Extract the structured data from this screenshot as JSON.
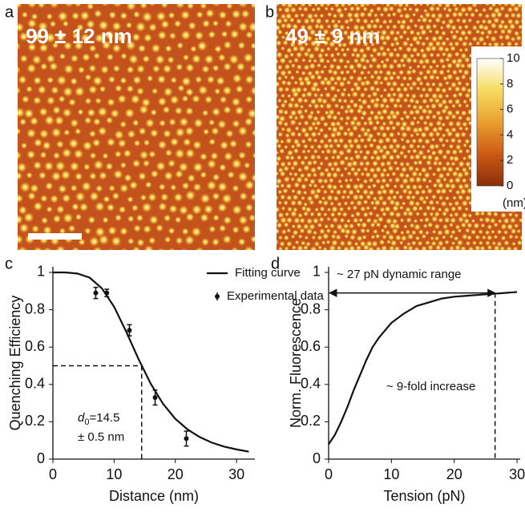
{
  "panels": {
    "a": {
      "label": "a",
      "annotation": "99 ± 12 nm"
    },
    "b": {
      "label": "b",
      "annotation": "49 ± 9 nm",
      "colorbar": {
        "lim": [
          0,
          10
        ],
        "ticks": [
          0,
          2,
          4,
          6,
          8,
          10
        ],
        "unit": "(nm)"
      }
    }
  },
  "chart_data": [
    {
      "type": "line",
      "panel_label": "c",
      "xlabel": "Distance (nm)",
      "ylabel": "Quenching Efficiency",
      "xlim": [
        0,
        33
      ],
      "xticks": [
        0,
        10,
        20,
        30
      ],
      "ylim": [
        0,
        1.03
      ],
      "yticks": [
        0,
        0.2,
        0.4,
        0.6,
        0.8,
        1
      ],
      "legend": "upper right",
      "series": [
        {
          "name": "Fitting curve",
          "type": "line",
          "color": "#111111",
          "x": [
            0,
            2,
            4,
            6,
            8,
            10,
            12,
            14,
            16,
            18,
            20,
            22,
            24,
            26,
            28,
            30,
            32
          ],
          "values": [
            1,
            1,
            0.994,
            0.972,
            0.915,
            0.816,
            0.681,
            0.535,
            0.403,
            0.296,
            0.216,
            0.159,
            0.118,
            0.088,
            0.067,
            0.052,
            0.04
          ]
        },
        {
          "name": "Experimental data",
          "type": "scatter",
          "color": "#111111",
          "x": [
            7,
            8.8,
            12.5,
            16.7,
            21.8
          ],
          "values": [
            0.89,
            0.89,
            0.69,
            0.33,
            0.11
          ],
          "errors": [
            0.03,
            0.02,
            0.03,
            0.04,
            0.04
          ]
        }
      ],
      "reference_lines": [
        {
          "x": 14.5,
          "y": 0.5,
          "style": "dashed"
        }
      ],
      "annotation_symbol": "d",
      "annotation_subscript": "0",
      "annotations": [
        "=14.5",
        "± 0.5 nm"
      ]
    },
    {
      "type": "line",
      "panel_label": "d",
      "xlabel": "Tension (pN)",
      "ylabel": "Norm. Fluorescence",
      "xlim": [
        0,
        30.5
      ],
      "xticks": [
        0,
        10,
        20,
        30
      ],
      "ylim": [
        0,
        1.03
      ],
      "yticks": [
        0,
        0.2,
        0.4,
        0.6,
        0.8,
        1
      ],
      "series": [
        {
          "type": "line",
          "color": "#111111",
          "x": [
            0,
            1,
            2,
            3,
            4,
            5,
            6,
            7,
            8,
            9,
            10,
            12,
            14,
            16,
            18,
            20,
            22,
            24,
            26,
            28,
            30
          ],
          "values": [
            0.08,
            0.13,
            0.2,
            0.28,
            0.37,
            0.45,
            0.53,
            0.6,
            0.65,
            0.69,
            0.73,
            0.78,
            0.82,
            0.84,
            0.86,
            0.87,
            0.875,
            0.88,
            0.885,
            0.89,
            0.895
          ]
        }
      ],
      "reference_lines": [
        {
          "x": 26.5,
          "y": 0.89,
          "style": "arrow"
        }
      ],
      "annotations": [
        "~ 27 pN dynamic range",
        "~ 9-fold increase"
      ]
    }
  ]
}
